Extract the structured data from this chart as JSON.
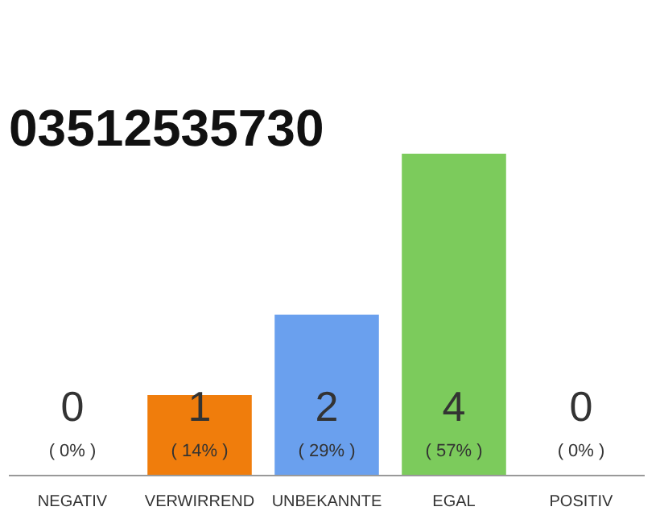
{
  "chart_data": {
    "type": "bar",
    "title": "03512535730",
    "categories": [
      "NEGATIV",
      "VERWIRREND",
      "UNBEKANNTE",
      "EGAL",
      "POSITIV"
    ],
    "values": [
      0,
      1,
      2,
      4,
      0
    ],
    "colors": [
      "#f07d0c",
      "#f07d0c",
      "#6aa0ee",
      "#7ccb5c",
      "#7ccb5c"
    ],
    "data_labels": true,
    "annotations": [
      "( 0% )",
      "( 14% )",
      "( 29% )",
      "( 57% )",
      "( 0% )"
    ],
    "tick_labels": "x"
  }
}
